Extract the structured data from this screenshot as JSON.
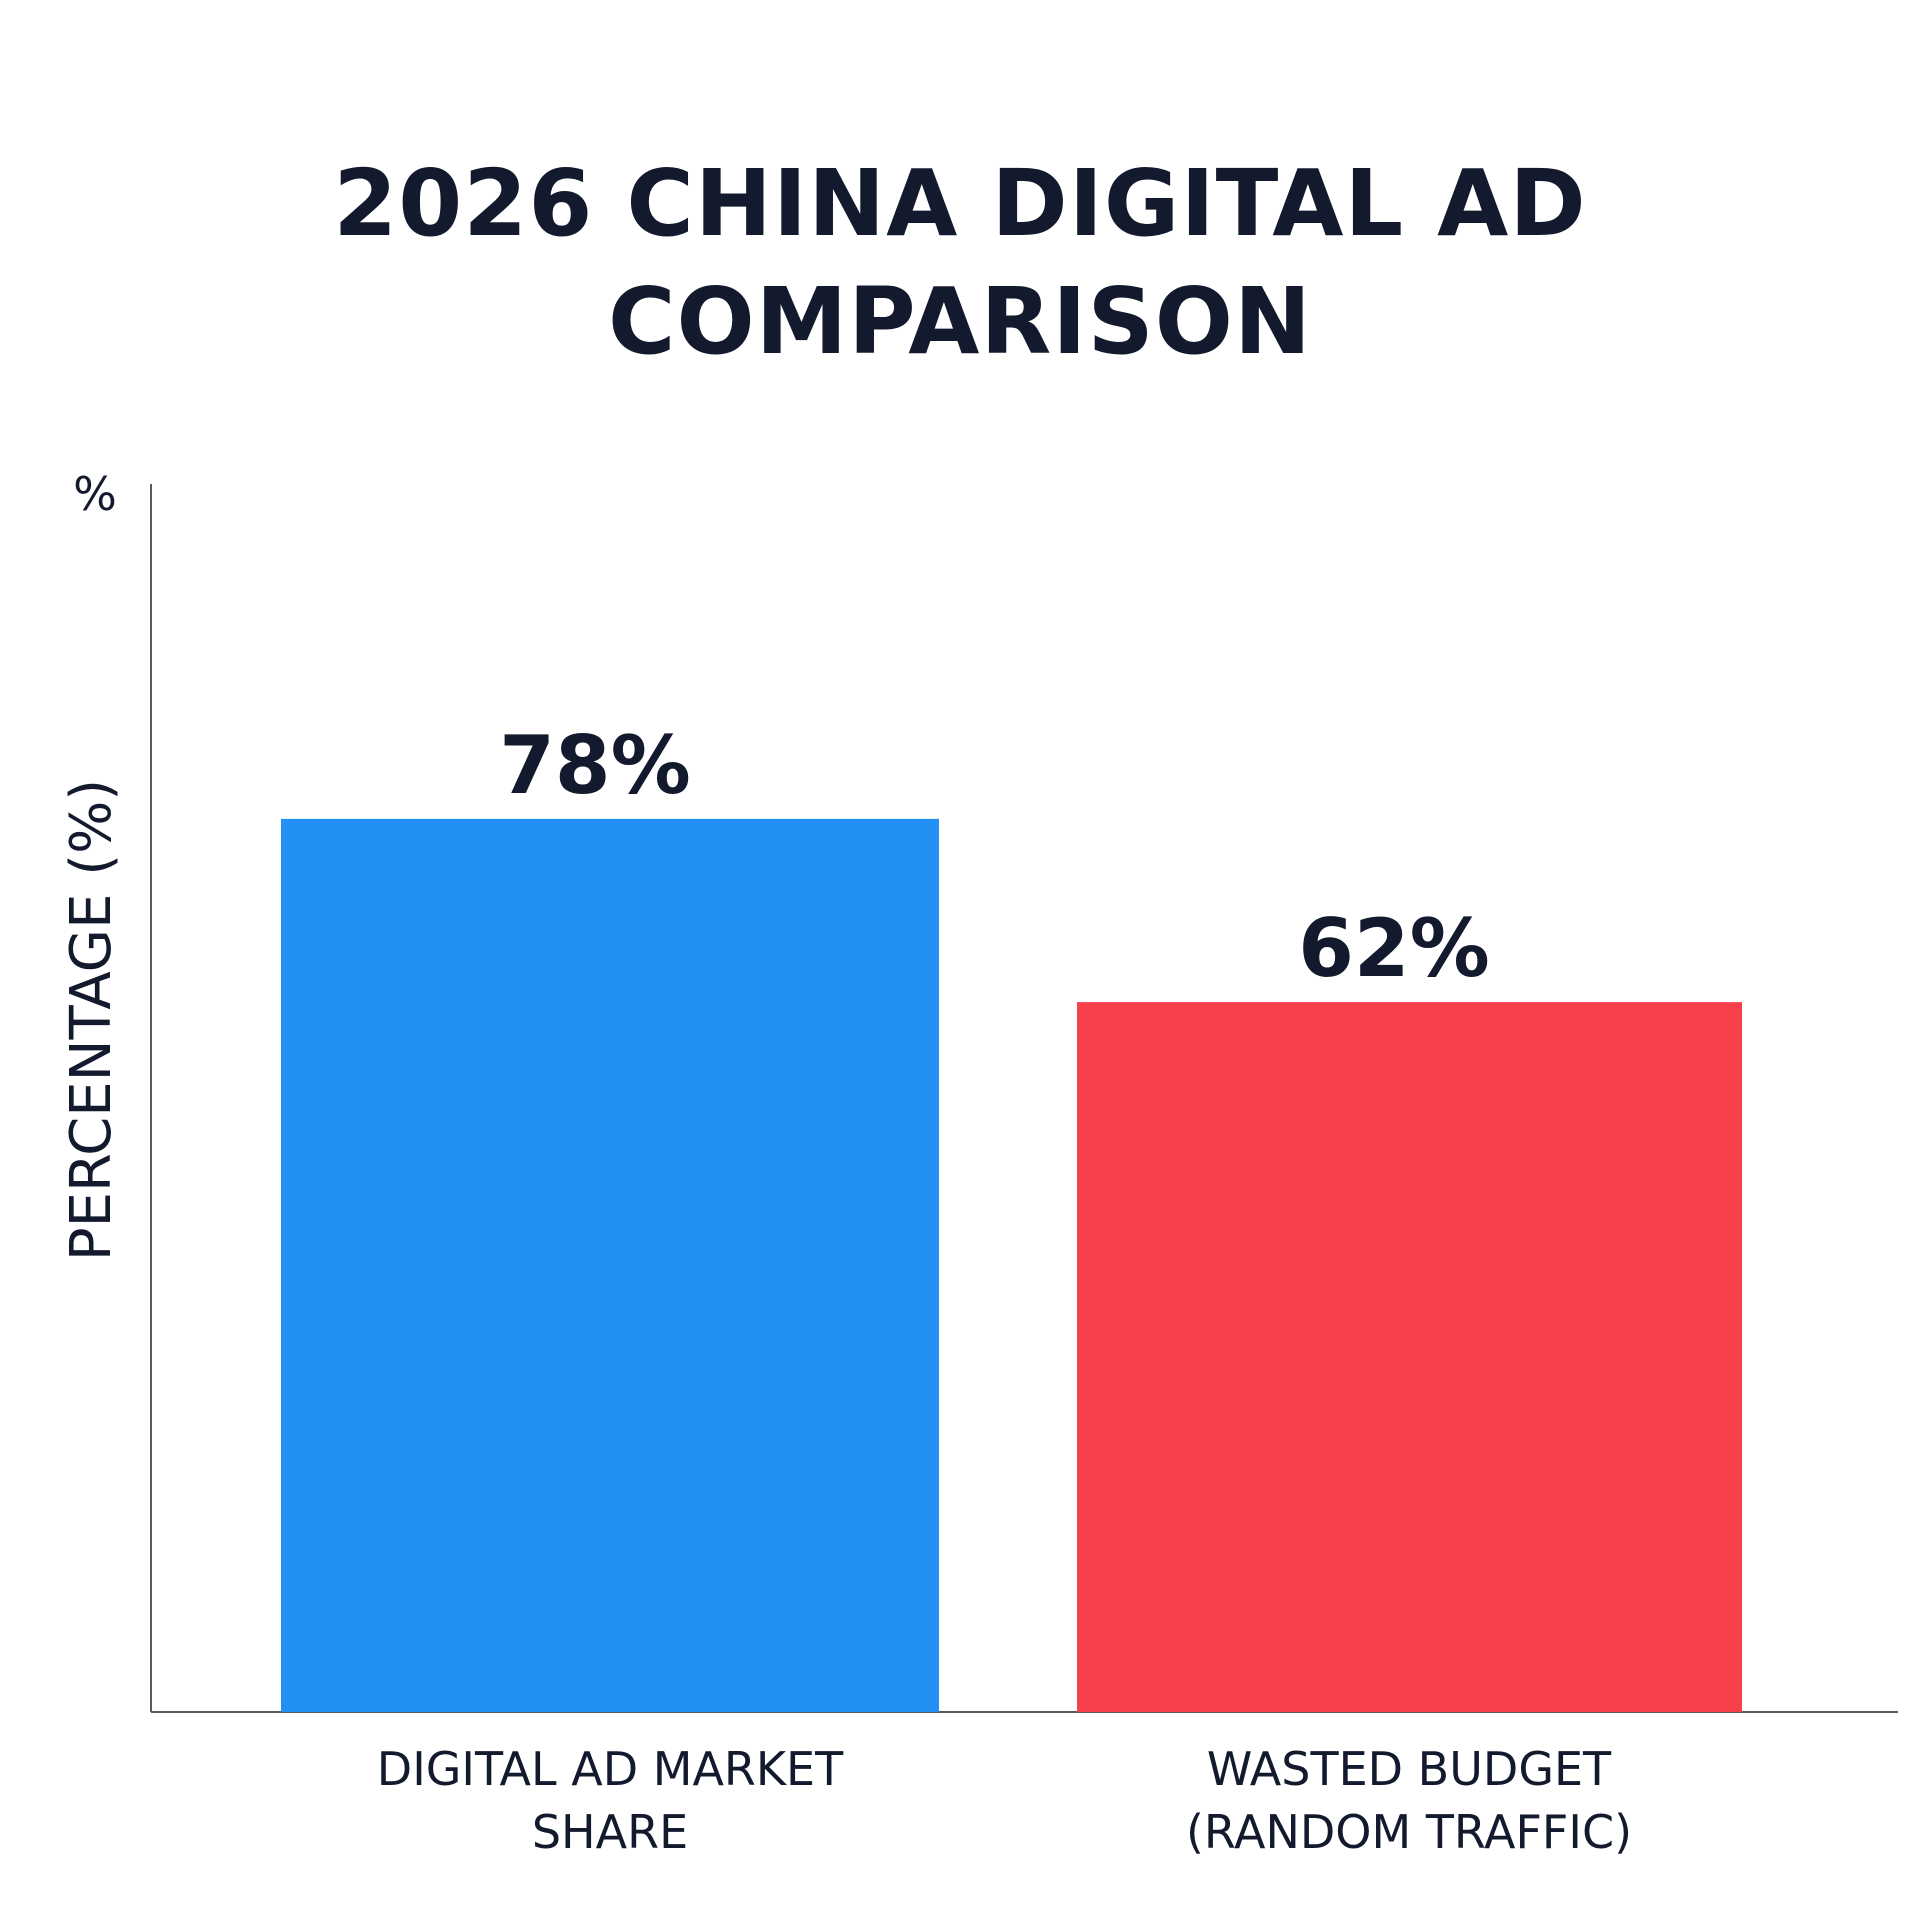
{
  "chart_data": {
    "type": "bar",
    "title_lines": [
      "2026 CHINA DIGITAL AD",
      "COMPARISON"
    ],
    "ylabel": "PERCENTAGE (%)",
    "y_unit_label": "%",
    "xlabel": "",
    "categories": [
      [
        "DIGITAL AD MARKET",
        "SHARE"
      ],
      [
        "WASTED BUDGET",
        "(RANDOM TRAFFIC)"
      ]
    ],
    "values": [
      78,
      62
    ],
    "value_labels": [
      "78%",
      "62%"
    ],
    "colors": [
      "#2290f5",
      "#f7404a"
    ],
    "ylim": [
      0,
      100
    ],
    "grid": false,
    "legend": "none"
  }
}
